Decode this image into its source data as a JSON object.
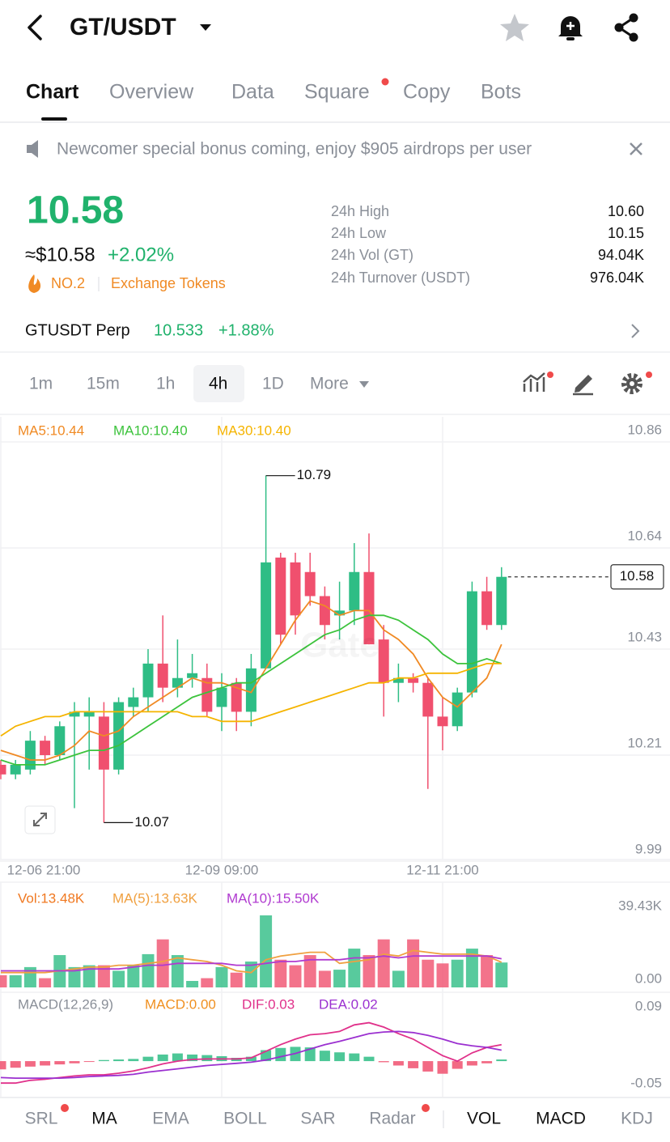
{
  "header": {
    "title": "GT/USDT"
  },
  "tabs": [
    "Chart",
    "Overview",
    "Data",
    "Square",
    "Copy",
    "Bots"
  ],
  "banner": "Newcomer special bonus coming, enjoy $905 airdrops per user",
  "ticker": {
    "price": "10.58",
    "usd_price": "≈$10.58",
    "change": "+2.02%",
    "rank": "NO.2",
    "category": "Exchange Tokens",
    "stats": [
      {
        "label": "24h High",
        "value": "10.60"
      },
      {
        "label": "24h Low",
        "value": "10.15"
      },
      {
        "label": "24h Vol (GT)",
        "value": "94.04K"
      },
      {
        "label": "24h Turnover (USDT)",
        "value": "976.04K"
      }
    ]
  },
  "perp": {
    "name": "GTUSDT Perp",
    "price": "10.533",
    "change": "+1.88%"
  },
  "intervals": [
    "1m",
    "15m",
    "1h",
    "4h",
    "1D",
    "More"
  ],
  "indicators": [
    "SRL",
    "MA",
    "EMA",
    "BOLL",
    "SAR",
    "Radar",
    "VOL",
    "MACD",
    "KDJ"
  ],
  "chart_data": [
    {
      "type": "candlestick",
      "categories": [
        "12-06 21:00",
        null,
        null,
        null,
        null,
        null,
        null,
        null,
        null,
        null,
        null,
        null,
        null,
        null,
        null,
        "12-09 09:00",
        null,
        null,
        null,
        null,
        null,
        null,
        null,
        null,
        null,
        null,
        null,
        null,
        null,
        null,
        "12-11 21:00",
        null,
        null,
        null,
        null
      ],
      "open": [
        10.19,
        10.17,
        10.18,
        10.24,
        10.21,
        10.29,
        10.29,
        10.29,
        10.18,
        10.31,
        10.33,
        10.4,
        10.35,
        10.37,
        10.37,
        10.31,
        10.36,
        10.3,
        10.39,
        10.62,
        10.61,
        10.59,
        10.54,
        10.5,
        10.51,
        10.59,
        10.45,
        10.36,
        10.37,
        10.36,
        10.29,
        10.27,
        10.34,
        10.55,
        10.48
      ],
      "high": [
        10.2,
        10.2,
        10.26,
        10.25,
        10.28,
        10.32,
        10.33,
        10.32,
        10.33,
        10.35,
        10.43,
        10.5,
        10.45,
        10.42,
        10.4,
        10.38,
        10.37,
        10.42,
        10.79,
        10.63,
        10.63,
        10.63,
        10.56,
        10.57,
        10.65,
        10.67,
        10.48,
        10.4,
        10.38,
        10.37,
        10.33,
        10.35,
        10.57,
        10.58,
        10.6
      ],
      "low": [
        10.16,
        10.16,
        10.17,
        10.19,
        10.2,
        10.1,
        10.18,
        10.07,
        10.17,
        10.29,
        10.3,
        10.32,
        10.33,
        10.35,
        10.29,
        10.26,
        10.26,
        10.27,
        10.39,
        10.44,
        10.46,
        10.52,
        10.45,
        10.45,
        10.48,
        10.44,
        10.29,
        10.32,
        10.34,
        10.14,
        10.22,
        10.26,
        10.33,
        10.47,
        10.47
      ],
      "close": [
        10.17,
        10.19,
        10.24,
        10.21,
        10.27,
        10.3,
        10.3,
        10.18,
        10.32,
        10.33,
        10.4,
        10.35,
        10.37,
        10.38,
        10.3,
        10.35,
        10.3,
        10.39,
        10.61,
        10.46,
        10.5,
        10.54,
        10.48,
        10.51,
        10.59,
        10.44,
        10.36,
        10.37,
        10.36,
        10.29,
        10.27,
        10.34,
        10.55,
        10.48,
        10.58
      ],
      "up_color": "#2ebd85",
      "down_color": "#f0506e",
      "series": [
        {
          "name": "MA5:10.44",
          "color": "#f08a24",
          "values": [
            10.22,
            10.21,
            10.2,
            10.2,
            10.21,
            10.23,
            10.26,
            10.25,
            10.26,
            10.29,
            10.31,
            10.33,
            10.35,
            10.37,
            10.36,
            10.36,
            10.35,
            10.34,
            10.39,
            10.44,
            10.49,
            10.53,
            10.52,
            10.5,
            10.51,
            10.51,
            10.47,
            10.45,
            10.42,
            10.37,
            10.33,
            10.31,
            10.34,
            10.37,
            10.44
          ]
        },
        {
          "name": "MA10:10.40",
          "color": "#3cc33c",
          "values": [
            10.2,
            10.19,
            10.19,
            10.19,
            10.2,
            10.21,
            10.22,
            10.22,
            10.23,
            10.25,
            10.27,
            10.29,
            10.31,
            10.33,
            10.34,
            10.35,
            10.36,
            10.36,
            10.38,
            10.4,
            10.42,
            10.44,
            10.46,
            10.47,
            10.49,
            10.5,
            10.5,
            10.49,
            10.47,
            10.45,
            10.42,
            10.4,
            10.4,
            10.41,
            10.4
          ]
        },
        {
          "name": "MA30:10.40",
          "color": "#f5b400",
          "values": [
            10.25,
            10.27,
            10.28,
            10.29,
            10.29,
            10.3,
            10.3,
            10.3,
            10.3,
            10.3,
            10.3,
            10.3,
            10.3,
            10.29,
            10.29,
            10.28,
            10.28,
            10.28,
            10.29,
            10.3,
            10.31,
            10.32,
            10.33,
            10.34,
            10.35,
            10.36,
            10.36,
            10.37,
            10.37,
            10.38,
            10.38,
            10.38,
            10.39,
            10.4,
            10.4
          ]
        }
      ],
      "ylim": [
        9.99,
        10.86
      ],
      "yticks": [
        9.99,
        10.21,
        10.43,
        10.64,
        10.86
      ],
      "grid": true,
      "annotations": [
        "10.79",
        "10.07"
      ],
      "last_price_label": "10.58"
    },
    {
      "type": "volume",
      "series": [
        {
          "name": "Vol:13.48K",
          "color": "#f07820",
          "values": [
            6.6,
            6.6,
            11,
            5,
            17.5,
            11,
            12,
            12,
            9,
            12,
            18,
            26,
            17.5,
            3.5,
            5,
            11,
            8,
            14,
            39,
            15,
            12,
            17.5,
            9,
            9.6,
            21,
            17.5,
            26,
            9,
            26,
            15,
            13,
            15,
            21,
            17.5,
            13.48
          ]
        },
        {
          "name": "MA(5):13.63K",
          "color": "#f0a040",
          "values": [
            8,
            8,
            8,
            8,
            9,
            10,
            11,
            11,
            12,
            12,
            13,
            14,
            16,
            15,
            14,
            12,
            9,
            8,
            15,
            17,
            18,
            19,
            19,
            13,
            14,
            15,
            18,
            17,
            20,
            19,
            18,
            18,
            18,
            17,
            13.63
          ]
        },
        {
          "name": "MA(10):15.50K",
          "color": "#b03ad0",
          "values": [
            9,
            9,
            9,
            9,
            9,
            9,
            10,
            10,
            10,
            11,
            12,
            12,
            13,
            13,
            13,
            13,
            12,
            12,
            13,
            14,
            14,
            15,
            15,
            15,
            16,
            16,
            17,
            16,
            17,
            17,
            17,
            17,
            17,
            17,
            15.5
          ]
        }
      ],
      "ylim": [
        0,
        39.43
      ],
      "yticks": [
        {
          "value": 0,
          "label": "0.00"
        },
        {
          "value": 39.43,
          "label": "39.43K"
        }
      ]
    },
    {
      "type": "macd",
      "title": "MACD(12,26,9)",
      "series": [
        {
          "name": "MACD:0.00",
          "color": "#f09020",
          "values": [
            -0.015,
            -0.012,
            -0.01,
            -0.008,
            -0.006,
            -0.004,
            -0.001,
            0.002,
            0.003,
            0.004,
            0.008,
            0.012,
            0.014,
            0.012,
            0.011,
            0.009,
            0.006,
            0.008,
            0.02,
            0.024,
            0.026,
            0.025,
            0.019,
            0.016,
            0.014,
            0.008,
            -0.002,
            -0.008,
            -0.013,
            -0.019,
            -0.023,
            -0.014,
            -0.008,
            -0.004,
            0.003
          ]
        },
        {
          "name": "DIF:0.03",
          "color": "#e0308a",
          "values": [
            -0.04,
            -0.04,
            -0.035,
            -0.033,
            -0.03,
            -0.027,
            -0.025,
            -0.025,
            -0.022,
            -0.018,
            -0.012,
            -0.005,
            0,
            0.003,
            0.004,
            0.004,
            0.004,
            0.006,
            0.018,
            0.03,
            0.04,
            0.048,
            0.05,
            0.054,
            0.066,
            0.07,
            0.062,
            0.05,
            0.04,
            0.025,
            0.01,
            0,
            0.015,
            0.025,
            0.03
          ]
        },
        {
          "name": "DEA:0.02",
          "color": "#9b30d0",
          "values": [
            -0.03,
            -0.031,
            -0.031,
            -0.031,
            -0.031,
            -0.03,
            -0.028,
            -0.027,
            -0.026,
            -0.024,
            -0.02,
            -0.017,
            -0.014,
            -0.011,
            -0.008,
            -0.006,
            -0.004,
            -0.002,
            0.002,
            0.008,
            0.014,
            0.022,
            0.03,
            0.036,
            0.043,
            0.05,
            0.053,
            0.054,
            0.052,
            0.047,
            0.04,
            0.032,
            0.028,
            0.025,
            0.02
          ]
        }
      ],
      "ylim": [
        -0.05,
        0.09
      ],
      "yticks": [
        -0.05,
        0.09
      ]
    }
  ]
}
